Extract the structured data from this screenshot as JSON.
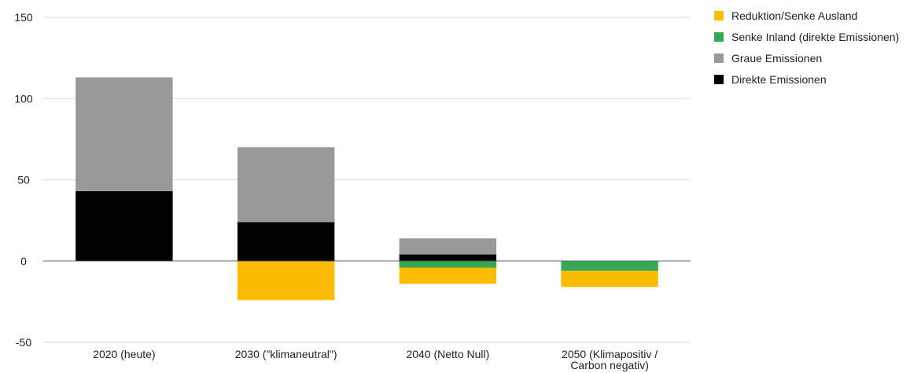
{
  "chart_data": {
    "type": "bar",
    "stacked": true,
    "categories": [
      [
        "2020 (heute)"
      ],
      [
        "2030 (\"klimaneutral\")"
      ],
      [
        "2040 (Netto Null)"
      ],
      [
        "2050 (Klimapositiv /",
        "Carbon negativ)"
      ]
    ],
    "series": [
      {
        "name": "Direkte Emissionen",
        "color": "#000000",
        "values": [
          43,
          24,
          4,
          0
        ]
      },
      {
        "name": "Graue Emissionen",
        "color": "#999999",
        "values": [
          70,
          46,
          10,
          0
        ]
      },
      {
        "name": "Senke Inland (direkte Emissionen)",
        "color": "#34a853",
        "values": [
          0,
          0,
          -4,
          -6
        ]
      },
      {
        "name": "Reduktion/Senke Ausland",
        "color": "#fbbc04",
        "values": [
          0,
          -24,
          -10,
          -10
        ]
      }
    ],
    "legend_order": [
      "Reduktion/Senke Ausland",
      "Senke Inland (direkte Emissionen)",
      "Graue Emissionen",
      "Direkte Emissionen"
    ],
    "legend_position": "right",
    "yticks": [
      150,
      100,
      50,
      0,
      -50
    ],
    "ylim": [
      -50,
      150
    ],
    "grid": true,
    "title": "",
    "xlabel": "",
    "ylabel": ""
  }
}
